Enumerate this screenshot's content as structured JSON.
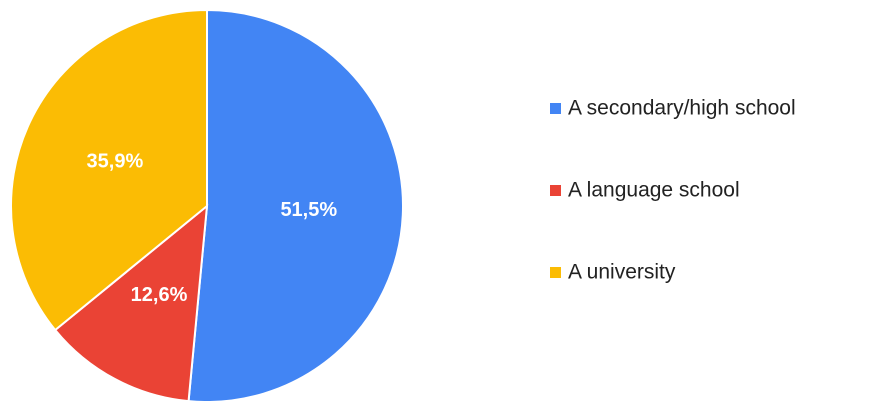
{
  "chart_data": {
    "type": "pie",
    "categories": [
      "A secondary/high school",
      "A language school",
      "A university"
    ],
    "values": [
      51.5,
      12.6,
      35.9
    ],
    "value_labels": [
      "51,5%",
      "12,6%",
      "35,9%"
    ],
    "colors": [
      "#4285f4",
      "#ea4335",
      "#fbbc04"
    ],
    "legend": "right"
  }
}
